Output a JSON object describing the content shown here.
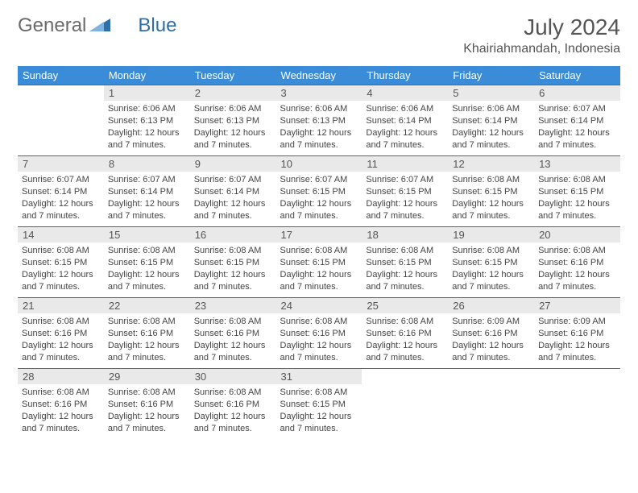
{
  "logo": {
    "text_a": "General",
    "text_b": "Blue"
  },
  "title": "July 2024",
  "location": "Khairiahmandah, Indonesia",
  "colors": {
    "header_bg": "#3a8bd8",
    "border": "#2f6fa7",
    "daynum_bg": "#e9e9e9",
    "text": "#444444"
  },
  "weekdays": [
    "Sunday",
    "Monday",
    "Tuesday",
    "Wednesday",
    "Thursday",
    "Friday",
    "Saturday"
  ],
  "weeks": [
    [
      null,
      {
        "n": "1",
        "sr": "6:06 AM",
        "ss": "6:13 PM",
        "dl": "12 hours and 7 minutes."
      },
      {
        "n": "2",
        "sr": "6:06 AM",
        "ss": "6:13 PM",
        "dl": "12 hours and 7 minutes."
      },
      {
        "n": "3",
        "sr": "6:06 AM",
        "ss": "6:13 PM",
        "dl": "12 hours and 7 minutes."
      },
      {
        "n": "4",
        "sr": "6:06 AM",
        "ss": "6:14 PM",
        "dl": "12 hours and 7 minutes."
      },
      {
        "n": "5",
        "sr": "6:06 AM",
        "ss": "6:14 PM",
        "dl": "12 hours and 7 minutes."
      },
      {
        "n": "6",
        "sr": "6:07 AM",
        "ss": "6:14 PM",
        "dl": "12 hours and 7 minutes."
      }
    ],
    [
      {
        "n": "7",
        "sr": "6:07 AM",
        "ss": "6:14 PM",
        "dl": "12 hours and 7 minutes."
      },
      {
        "n": "8",
        "sr": "6:07 AM",
        "ss": "6:14 PM",
        "dl": "12 hours and 7 minutes."
      },
      {
        "n": "9",
        "sr": "6:07 AM",
        "ss": "6:14 PM",
        "dl": "12 hours and 7 minutes."
      },
      {
        "n": "10",
        "sr": "6:07 AM",
        "ss": "6:15 PM",
        "dl": "12 hours and 7 minutes."
      },
      {
        "n": "11",
        "sr": "6:07 AM",
        "ss": "6:15 PM",
        "dl": "12 hours and 7 minutes."
      },
      {
        "n": "12",
        "sr": "6:08 AM",
        "ss": "6:15 PM",
        "dl": "12 hours and 7 minutes."
      },
      {
        "n": "13",
        "sr": "6:08 AM",
        "ss": "6:15 PM",
        "dl": "12 hours and 7 minutes."
      }
    ],
    [
      {
        "n": "14",
        "sr": "6:08 AM",
        "ss": "6:15 PM",
        "dl": "12 hours and 7 minutes."
      },
      {
        "n": "15",
        "sr": "6:08 AM",
        "ss": "6:15 PM",
        "dl": "12 hours and 7 minutes."
      },
      {
        "n": "16",
        "sr": "6:08 AM",
        "ss": "6:15 PM",
        "dl": "12 hours and 7 minutes."
      },
      {
        "n": "17",
        "sr": "6:08 AM",
        "ss": "6:15 PM",
        "dl": "12 hours and 7 minutes."
      },
      {
        "n": "18",
        "sr": "6:08 AM",
        "ss": "6:15 PM",
        "dl": "12 hours and 7 minutes."
      },
      {
        "n": "19",
        "sr": "6:08 AM",
        "ss": "6:15 PM",
        "dl": "12 hours and 7 minutes."
      },
      {
        "n": "20",
        "sr": "6:08 AM",
        "ss": "6:16 PM",
        "dl": "12 hours and 7 minutes."
      }
    ],
    [
      {
        "n": "21",
        "sr": "6:08 AM",
        "ss": "6:16 PM",
        "dl": "12 hours and 7 minutes."
      },
      {
        "n": "22",
        "sr": "6:08 AM",
        "ss": "6:16 PM",
        "dl": "12 hours and 7 minutes."
      },
      {
        "n": "23",
        "sr": "6:08 AM",
        "ss": "6:16 PM",
        "dl": "12 hours and 7 minutes."
      },
      {
        "n": "24",
        "sr": "6:08 AM",
        "ss": "6:16 PM",
        "dl": "12 hours and 7 minutes."
      },
      {
        "n": "25",
        "sr": "6:08 AM",
        "ss": "6:16 PM",
        "dl": "12 hours and 7 minutes."
      },
      {
        "n": "26",
        "sr": "6:09 AM",
        "ss": "6:16 PM",
        "dl": "12 hours and 7 minutes."
      },
      {
        "n": "27",
        "sr": "6:09 AM",
        "ss": "6:16 PM",
        "dl": "12 hours and 7 minutes."
      }
    ],
    [
      {
        "n": "28",
        "sr": "6:08 AM",
        "ss": "6:16 PM",
        "dl": "12 hours and 7 minutes."
      },
      {
        "n": "29",
        "sr": "6:08 AM",
        "ss": "6:16 PM",
        "dl": "12 hours and 7 minutes."
      },
      {
        "n": "30",
        "sr": "6:08 AM",
        "ss": "6:16 PM",
        "dl": "12 hours and 7 minutes."
      },
      {
        "n": "31",
        "sr": "6:08 AM",
        "ss": "6:15 PM",
        "dl": "12 hours and 7 minutes."
      },
      null,
      null,
      null
    ]
  ],
  "labels": {
    "sunrise": "Sunrise:",
    "sunset": "Sunset:",
    "daylight": "Daylight:"
  }
}
